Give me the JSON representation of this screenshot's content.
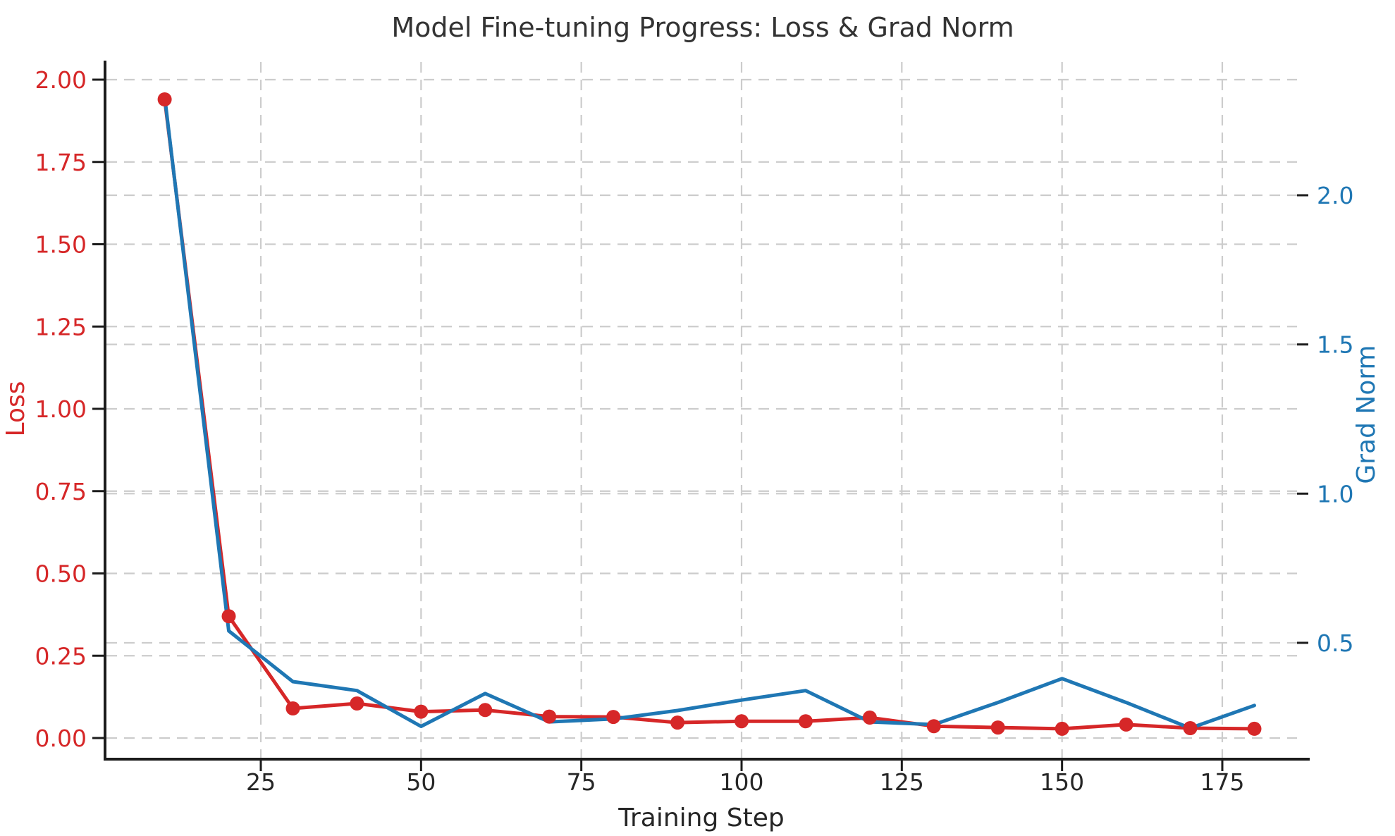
{
  "chart_data": {
    "type": "line",
    "title": "Model Fine-tuning Progress: Loss & Grad Norm",
    "xlabel": "Training Step",
    "ylabel_left": "Loss",
    "ylabel_right": "Grad Norm",
    "grid": true,
    "legend": "none",
    "colors": {
      "loss": "#d62728",
      "grad_norm": "#1f77b4",
      "axis_text": "#262626",
      "spine": "#1c1c1c",
      "gridline": "#cccccc"
    },
    "x": [
      10,
      20,
      30,
      40,
      50,
      60,
      70,
      80,
      90,
      100,
      110,
      120,
      130,
      140,
      150,
      160,
      170,
      180
    ],
    "series": [
      {
        "name": "Loss",
        "axis": "left",
        "marker": "circle",
        "values": [
          1.94,
          0.37,
          0.09,
          0.105,
          0.08,
          0.085,
          0.065,
          0.064,
          0.047,
          0.051,
          0.051,
          0.062,
          0.036,
          0.032,
          0.028,
          0.041,
          0.03,
          0.028
        ]
      },
      {
        "name": "Grad Norm",
        "axis": "right",
        "marker": "none",
        "values": [
          2.33,
          0.54,
          0.37,
          0.34,
          0.22,
          0.33,
          0.235,
          0.245,
          0.273,
          0.308,
          0.34,
          0.235,
          0.226,
          0.3,
          0.38,
          0.3,
          0.214,
          0.29
        ]
      }
    ],
    "x_ticks": [
      25,
      50,
      75,
      100,
      125,
      150,
      175
    ],
    "left_ticks": [
      0.0,
      0.25,
      0.5,
      0.75,
      1.0,
      1.25,
      1.5,
      1.75,
      2.0
    ],
    "left_tick_labels": [
      "0.00",
      "0.25",
      "0.50",
      "0.75",
      "1.00",
      "1.25",
      "1.50",
      "1.75",
      "2.00"
    ],
    "right_ticks": [
      0.5,
      1.0,
      1.5,
      2.0
    ],
    "right_tick_labels": [
      "0.5",
      "1.0",
      "1.5",
      "2.0"
    ]
  }
}
